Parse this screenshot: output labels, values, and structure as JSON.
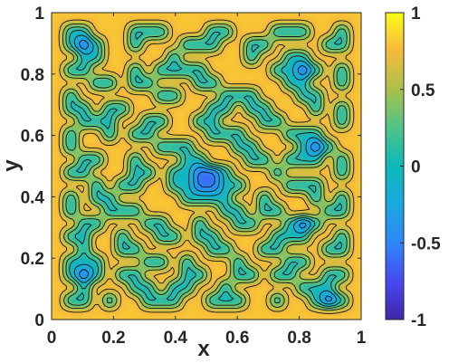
{
  "chart_data": {
    "type": "heatmap",
    "title": "",
    "xlabel": "x",
    "ylabel": "y",
    "xlim": [
      0,
      1
    ],
    "ylim": [
      0,
      1
    ],
    "x_ticks": [
      0,
      0.2,
      0.4,
      0.6,
      0.8,
      1
    ],
    "x_tick_labels": [
      "0",
      "0.2",
      "0.4",
      "0.6",
      "0.8",
      "1"
    ],
    "y_ticks": [
      0,
      0.2,
      0.4,
      0.6,
      0.8,
      1
    ],
    "y_tick_labels": [
      "0",
      "0.2",
      "0.4",
      "0.6",
      "0.8",
      "1"
    ],
    "colorbar": {
      "limits": [
        -1,
        1
      ],
      "ticks": [
        1,
        0.5,
        0,
        -0.5,
        -1
      ],
      "tick_labels": [
        "1",
        "0.5",
        "0",
        "-0.5",
        "-1"
      ],
      "colormap": "parula"
    },
    "contour_levels": [
      -0.9,
      -0.7,
      -0.5,
      -0.3,
      -0.1,
      0.1,
      0.3,
      0.5,
      0.7,
      0.9
    ],
    "field_rows_note_free": true,
    "grid_n": 24,
    "field": [
      "YYYYYYYYYYYYYYYYYYYYYYYY",
      "YCCYYYCCCYYYCCYYYCCCYYCY",
      "YCBCYYCYYYCCCYYCCYYYYCCY",
      "YYCCYYYYYCYYYYYCYYCCYYYY",
      "YCCYYYCYCCCCYYYYYCCBCYCY",
      "YYYCCYCCYYYCCYYYYYCCYYCY",
      "YCYYYYYYCCYYYCCCYYYCCYYY",
      "YCCYCCYYYYYYCCYCCYYYCYCY",
      "YYCCCYYCCYYCCYYYCCYYYYCY",
      "YCYYCYCCYYYYCCCYYYCCCYYY",
      "YCYYYYYYCCCYYYCCYYYCBCYY",
      "YYCCYYCYYYCCYYYCCYCCCYCY",
      "YCCYYYCCYCCBBCYYYCYYYYCY",
      "YYYCYCCYYCCBBCCYYYCCCYYY",
      "YCYCCYYYYYCCCCYYCYYYCYCY",
      "YCYYCCCYYYYYYCCYCCYYYCCY",
      "YYCCYYYCCYYCYYCCYYCBCYYY",
      "YCCYYCYYCCYCCYYYYCCCYYCY",
      "YYCYYCCYYYYYCCYYCCYYYCCY",
      "YCCCYYYCCYCYYYCYYYCCYYYY",
      "YCBCYCCYYYCCYYCCYCCYYCCY",
      "YYCYYYCCYCCYYCYYYYYCCCYY",
      "YCCYCYYCCCYYCCCYYCYYCBCY",
      "YYYYYYYYYYYYYYYYYYYYYYYY"
    ],
    "field_legend": {
      "Y": 0.8,
      "C": 0.0,
      "B": -0.6
    }
  }
}
